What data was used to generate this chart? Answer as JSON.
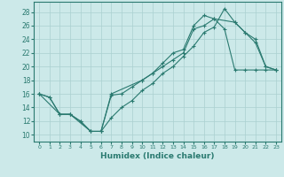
{
  "xlabel": "Humidex (Indice chaleur)",
  "ylabel": "",
  "background_color": "#cce9e9",
  "line_color": "#2a7a70",
  "grid_color": "#aad0d0",
  "xlim": [
    -0.5,
    23.5
  ],
  "ylim": [
    9,
    29.5
  ],
  "xticks": [
    0,
    1,
    2,
    3,
    4,
    5,
    6,
    7,
    8,
    9,
    10,
    11,
    12,
    13,
    14,
    15,
    16,
    17,
    18,
    19,
    20,
    21,
    22,
    23
  ],
  "yticks": [
    10,
    12,
    14,
    16,
    18,
    20,
    22,
    24,
    26,
    28
  ],
  "line1_x": [
    0,
    1,
    2,
    3,
    4,
    5,
    6,
    7,
    8,
    9,
    10,
    11,
    12,
    13,
    14,
    15,
    16,
    17,
    18,
    19,
    20,
    21,
    22,
    23
  ],
  "line1_y": [
    16,
    15.5,
    13,
    13,
    12,
    10.5,
    10.5,
    15.8,
    16,
    17,
    18,
    19,
    20,
    21,
    22,
    25.5,
    26,
    27,
    25.5,
    19.5,
    19.5,
    19.5,
    19.5,
    19.5
  ],
  "line2_x": [
    0,
    1,
    2,
    3,
    4,
    5,
    6,
    7,
    8,
    9,
    10,
    11,
    12,
    13,
    14,
    15,
    16,
    17,
    18,
    19,
    20,
    21,
    22,
    23
  ],
  "line2_y": [
    16,
    15.5,
    13,
    13,
    12,
    10.5,
    10.5,
    12.5,
    14,
    15,
    16.5,
    17.5,
    19,
    20,
    21.5,
    23,
    25,
    25.8,
    28.5,
    26.5,
    25,
    23.5,
    20,
    19.5
  ],
  "line3_x": [
    0,
    2,
    3,
    5,
    6,
    7,
    10,
    11,
    12,
    13,
    14,
    15,
    16,
    17,
    19,
    20,
    21,
    22,
    23
  ],
  "line3_y": [
    16,
    13,
    13,
    10.5,
    10.5,
    16,
    18,
    19,
    20.5,
    22,
    22.5,
    26,
    27.5,
    27,
    26.5,
    25,
    24,
    20,
    19.5
  ]
}
